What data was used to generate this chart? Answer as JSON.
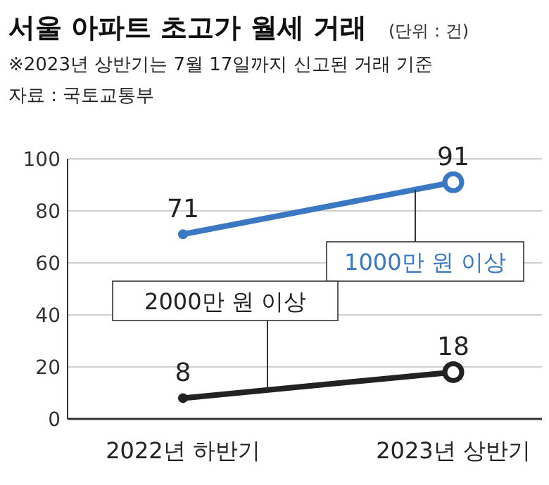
{
  "chart_data": {
    "type": "line",
    "title": "서울 아파트 초고가 월세 거래",
    "subtitle": "※2023년 상반기는 7월 17일까지 신고된 거래 기준",
    "annotations": [
      "(단위 : 건)",
      "자료 : 국토교통부"
    ],
    "categories": [
      "2022년 하반기",
      "2023년 상반기"
    ],
    "series": [
      {
        "name": "1000만 원 이상",
        "color": "#3a78c4",
        "values": [
          71,
          91
        ]
      },
      {
        "name": "2000만 원 이상",
        "color": "#222222",
        "values": [
          8,
          18
        ]
      }
    ],
    "ylim": [
      0,
      100
    ],
    "yticks": [
      0,
      20,
      40,
      60,
      80,
      100
    ],
    "grid": "y",
    "marker": "circle",
    "data_labels": true
  }
}
